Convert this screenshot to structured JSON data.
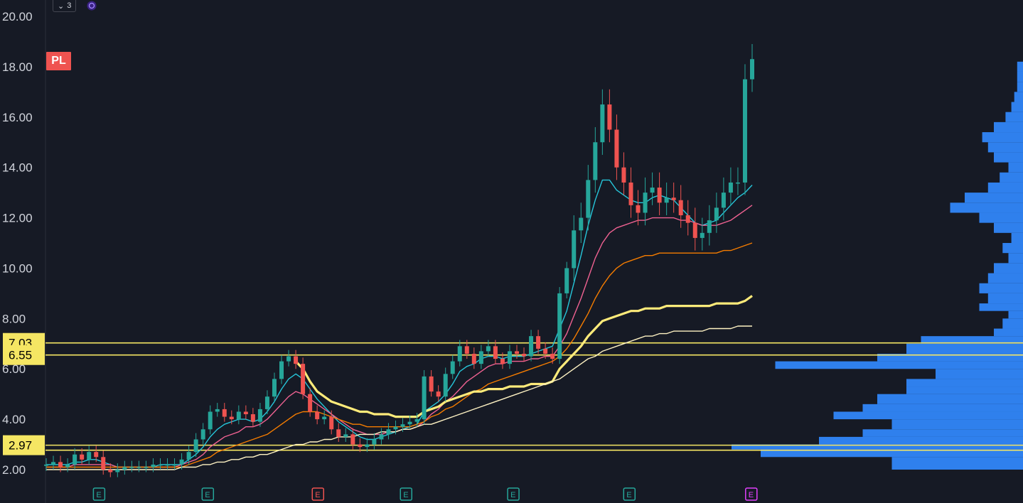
{
  "symbol": "PL",
  "top_control": {
    "chevron": "chevron-down-icon",
    "count": "3"
  },
  "colors": {
    "background": "#161a25",
    "up": "#26a69a",
    "down": "#ef5350",
    "ema_fast": "#26c6da",
    "ema_mid": "#f06292",
    "ema_slow": "#f57c00",
    "vwap": "#ffeb7a",
    "ma_long": "#fff3c4",
    "level": "#f5e663",
    "volume_profile": "#2f80ed",
    "earnings_past": "#26a69a",
    "earnings_down": "#ef5350",
    "earnings_future": "#e040fb"
  },
  "chart_data": {
    "type": "line",
    "title": "",
    "xlabel": "",
    "ylabel": "",
    "ylim": [
      1.5,
      20.6
    ],
    "y_ticks": [
      "2.00",
      "4.00",
      "6.00",
      "8.00",
      "10.00",
      "12.00",
      "14.00",
      "16.00",
      "18.00",
      "20.00"
    ],
    "y_tick_values": [
      2,
      4,
      6,
      8,
      10,
      12,
      14,
      16,
      18,
      20
    ],
    "grid": false,
    "levels": [
      {
        "label": "7.03",
        "value": 7.03
      },
      {
        "label": "6.55",
        "value": 6.55
      },
      {
        "label": "2.97",
        "value": 2.97
      },
      {
        "label": "",
        "value": 2.77
      }
    ],
    "price_series": {
      "name": "",
      "x": [
        0,
        10,
        20,
        30,
        40,
        50,
        60,
        70,
        80,
        90,
        100,
        110,
        120,
        130,
        140,
        150,
        160,
        170,
        180,
        190,
        200,
        210,
        220,
        230,
        240,
        250,
        260,
        270,
        280,
        290,
        300,
        310,
        320,
        330,
        340,
        350,
        360,
        370,
        380,
        390,
        400,
        410,
        420,
        430,
        440,
        450,
        460,
        470,
        480,
        490,
        500,
        510,
        520,
        530,
        540,
        550,
        560,
        570,
        580,
        590,
        600,
        610,
        620,
        630,
        640,
        650,
        660,
        670,
        680,
        690,
        700,
        710,
        720,
        730,
        740,
        750,
        760,
        770,
        780,
        790,
        800,
        810,
        820,
        830,
        840,
        850,
        860,
        870,
        880,
        890,
        900,
        910,
        920,
        930,
        940,
        950,
        960,
        970,
        980,
        990
      ],
      "y": [
        2.2,
        2.3,
        2.1,
        2.2,
        2.6,
        2.4,
        2.7,
        2.5,
        2.0,
        1.9,
        2.0,
        2.1,
        2.1,
        2.1,
        2.1,
        2.2,
        2.2,
        2.2,
        2.2,
        2.4,
        2.7,
        3.2,
        3.6,
        4.3,
        4.4,
        4.1,
        4.0,
        4.3,
        4.2,
        3.9,
        4.4,
        4.9,
        5.6,
        6.3,
        6.5,
        6.2,
        5.0,
        4.3,
        4.0,
        4.1,
        3.6,
        3.3,
        3.4,
        3.0,
        2.9,
        3.0,
        3.2,
        3.4,
        3.6,
        3.7,
        3.8,
        3.9,
        4.0,
        5.7,
        5.1,
        4.9,
        5.8,
        6.3,
        6.9,
        6.6,
        6.2,
        6.7,
        6.9,
        6.4,
        6.2,
        6.7,
        6.6,
        6.5,
        7.3,
        6.8,
        6.6,
        6.4,
        9.0,
        10.0,
        11.5,
        12.0,
        13.5,
        15.0,
        16.5,
        15.5,
        14.0,
        13.4,
        12.5,
        12.2,
        13.0,
        13.2,
        12.6,
        12.8,
        12.7,
        12.1,
        11.8,
        11.2,
        11.4,
        11.9,
        12.4,
        13.0,
        13.4,
        13.4,
        17.5,
        18.3
      ]
    },
    "series": [
      {
        "name": "",
        "color_key": "ema_fast",
        "y": [
          2.2,
          2.2,
          2.2,
          2.2,
          2.3,
          2.3,
          2.4,
          2.4,
          2.3,
          2.2,
          2.1,
          2.1,
          2.1,
          2.1,
          2.1,
          2.1,
          2.2,
          2.2,
          2.2,
          2.2,
          2.4,
          2.6,
          2.9,
          3.3,
          3.6,
          3.8,
          3.9,
          4.0,
          4.0,
          3.9,
          4.0,
          4.3,
          4.7,
          5.2,
          5.6,
          5.8,
          5.6,
          5.2,
          4.8,
          4.5,
          4.2,
          3.9,
          3.7,
          3.5,
          3.3,
          3.2,
          3.2,
          3.3,
          3.4,
          3.5,
          3.6,
          3.7,
          3.8,
          4.3,
          4.5,
          4.7,
          5.0,
          5.4,
          5.9,
          6.1,
          6.2,
          6.4,
          6.5,
          6.5,
          6.4,
          6.5,
          6.5,
          6.5,
          6.6,
          6.7,
          6.8,
          6.9,
          7.6,
          8.3,
          9.4,
          10.5,
          11.7,
          12.7,
          13.5,
          13.5,
          13.1,
          12.9,
          12.7,
          12.6,
          12.6,
          12.8,
          12.9,
          12.8,
          12.7,
          12.4,
          12.1,
          11.8,
          11.7,
          11.8,
          11.9,
          12.2,
          12.5,
          12.8,
          13.0,
          13.3
        ]
      },
      {
        "name": "",
        "color_key": "ema_mid",
        "y": [
          2.1,
          2.1,
          2.1,
          2.1,
          2.2,
          2.2,
          2.2,
          2.2,
          2.2,
          2.2,
          2.1,
          2.1,
          2.1,
          2.1,
          2.1,
          2.1,
          2.1,
          2.1,
          2.1,
          2.2,
          2.3,
          2.4,
          2.6,
          2.9,
          3.1,
          3.3,
          3.4,
          3.5,
          3.7,
          3.7,
          3.8,
          4.0,
          4.3,
          4.6,
          4.9,
          5.1,
          5.0,
          4.8,
          4.6,
          4.4,
          4.2,
          4.0,
          3.8,
          3.6,
          3.5,
          3.4,
          3.4,
          3.4,
          3.5,
          3.5,
          3.6,
          3.6,
          3.7,
          3.9,
          4.2,
          4.4,
          4.7,
          4.9,
          5.2,
          5.5,
          5.7,
          5.9,
          6.1,
          6.2,
          6.2,
          6.3,
          6.3,
          6.3,
          6.4,
          6.4,
          6.5,
          6.5,
          6.9,
          7.4,
          8.1,
          8.8,
          9.6,
          10.4,
          11.0,
          11.4,
          11.6,
          11.7,
          11.8,
          11.9,
          11.9,
          12.0,
          12.0,
          12.0,
          12.0,
          11.9,
          11.9,
          11.8,
          11.7,
          11.7,
          11.7,
          11.8,
          11.9,
          12.1,
          12.3,
          12.5
        ]
      },
      {
        "name": "",
        "color_key": "ema_slow",
        "y": [
          2.1,
          2.1,
          2.1,
          2.1,
          2.1,
          2.1,
          2.1,
          2.1,
          2.1,
          2.1,
          2.1,
          2.1,
          2.1,
          2.1,
          2.1,
          2.1,
          2.1,
          2.1,
          2.1,
          2.1,
          2.2,
          2.3,
          2.4,
          2.5,
          2.7,
          2.8,
          2.9,
          3.0,
          3.1,
          3.2,
          3.3,
          3.4,
          3.6,
          3.8,
          4.0,
          4.2,
          4.3,
          4.3,
          4.3,
          4.2,
          4.1,
          4.0,
          3.9,
          3.8,
          3.8,
          3.7,
          3.7,
          3.7,
          3.7,
          3.7,
          3.7,
          3.7,
          3.8,
          3.9,
          4.1,
          4.2,
          4.4,
          4.5,
          4.7,
          4.9,
          5.1,
          5.2,
          5.4,
          5.5,
          5.6,
          5.7,
          5.8,
          5.9,
          6.0,
          6.1,
          6.2,
          6.3,
          6.5,
          6.8,
          7.2,
          7.7,
          8.2,
          8.8,
          9.3,
          9.7,
          10.0,
          10.2,
          10.3,
          10.4,
          10.5,
          10.5,
          10.6,
          10.6,
          10.6,
          10.6,
          10.6,
          10.6,
          10.6,
          10.6,
          10.6,
          10.7,
          10.7,
          10.8,
          10.9,
          11.0
        ]
      },
      {
        "name": "",
        "color_key": "vwap",
        "y": [
          null,
          null,
          null,
          null,
          null,
          null,
          null,
          null,
          null,
          null,
          null,
          null,
          null,
          null,
          null,
          null,
          null,
          null,
          null,
          null,
          null,
          null,
          null,
          null,
          null,
          null,
          null,
          null,
          null,
          null,
          null,
          null,
          null,
          null,
          null,
          6.3,
          6.0,
          5.5,
          5.1,
          4.9,
          4.7,
          4.6,
          4.5,
          4.4,
          4.3,
          4.3,
          4.2,
          4.2,
          4.2,
          4.1,
          4.1,
          4.1,
          4.1,
          4.3,
          4.4,
          4.5,
          4.7,
          4.8,
          4.9,
          5.0,
          5.1,
          5.1,
          5.2,
          5.2,
          5.2,
          5.3,
          5.3,
          5.3,
          5.4,
          5.4,
          5.4,
          5.5,
          6.0,
          6.3,
          6.6,
          6.9,
          7.3,
          7.6,
          7.9,
          8.0,
          8.1,
          8.2,
          8.3,
          8.3,
          8.4,
          8.4,
          8.4,
          8.5,
          8.5,
          8.5,
          8.5,
          8.5,
          8.5,
          8.5,
          8.6,
          8.6,
          8.6,
          8.6,
          8.7,
          8.9
        ]
      },
      {
        "name": "",
        "color_key": "ma_long",
        "y": [
          2.0,
          2.0,
          2.0,
          2.0,
          2.0,
          2.0,
          2.0,
          2.0,
          2.0,
          2.0,
          2.0,
          2.0,
          2.0,
          2.0,
          2.0,
          2.0,
          2.0,
          2.0,
          2.0,
          2.1,
          2.1,
          2.1,
          2.2,
          2.2,
          2.3,
          2.3,
          2.4,
          2.4,
          2.5,
          2.5,
          2.6,
          2.6,
          2.7,
          2.8,
          2.9,
          3.0,
          3.0,
          3.1,
          3.1,
          3.2,
          3.2,
          3.3,
          3.3,
          3.3,
          3.4,
          3.4,
          3.4,
          3.5,
          3.5,
          3.5,
          3.6,
          3.6,
          3.7,
          3.8,
          3.8,
          3.9,
          4.0,
          4.1,
          4.2,
          4.3,
          4.4,
          4.5,
          4.6,
          4.7,
          4.8,
          4.9,
          5.0,
          5.1,
          5.2,
          5.3,
          5.4,
          5.5,
          5.6,
          5.8,
          6.0,
          6.2,
          6.4,
          6.5,
          6.7,
          6.8,
          6.9,
          7.0,
          7.1,
          7.2,
          7.3,
          7.3,
          7.4,
          7.4,
          7.5,
          7.5,
          7.5,
          7.5,
          7.5,
          7.6,
          7.6,
          7.6,
          7.6,
          7.7,
          7.7,
          7.7
        ]
      }
    ],
    "volume_profile": {
      "price_bins": [
        2.0,
        2.5,
        2.8,
        3.0,
        3.3,
        3.6,
        4.0,
        4.3,
        4.6,
        5.0,
        5.3,
        5.6,
        6.0,
        6.3,
        6.6,
        7.0,
        7.3,
        7.6,
        8.0,
        8.3,
        8.6,
        9.0,
        9.4,
        9.8,
        10.2,
        10.6,
        11.0,
        11.4,
        11.8,
        12.2,
        12.6,
        13.0,
        13.4,
        13.8,
        14.2,
        14.6,
        15.0,
        15.4,
        15.8,
        16.2,
        16.6,
        17.0,
        17.4,
        17.8
      ],
      "volumes": [
        45,
        90,
        100,
        70,
        55,
        45,
        65,
        55,
        50,
        40,
        40,
        30,
        85,
        50,
        40,
        35,
        10,
        7,
        5,
        15,
        12,
        15,
        12,
        10,
        5,
        7,
        4,
        10,
        15,
        25,
        20,
        12,
        8,
        5,
        10,
        12,
        14,
        10,
        6,
        4,
        3,
        2,
        2,
        2
      ]
    },
    "earnings_markers": [
      {
        "label": "E",
        "x": 36,
        "kind": "past"
      },
      {
        "label": "E",
        "x": 110,
        "kind": "past"
      },
      {
        "label": "E",
        "x": 185,
        "kind": "down"
      },
      {
        "label": "E",
        "x": 245,
        "kind": "past"
      },
      {
        "label": "E",
        "x": 318,
        "kind": "past"
      },
      {
        "label": "E",
        "x": 397,
        "kind": "past"
      },
      {
        "label": "E",
        "x": 480,
        "kind": "future"
      }
    ]
  }
}
